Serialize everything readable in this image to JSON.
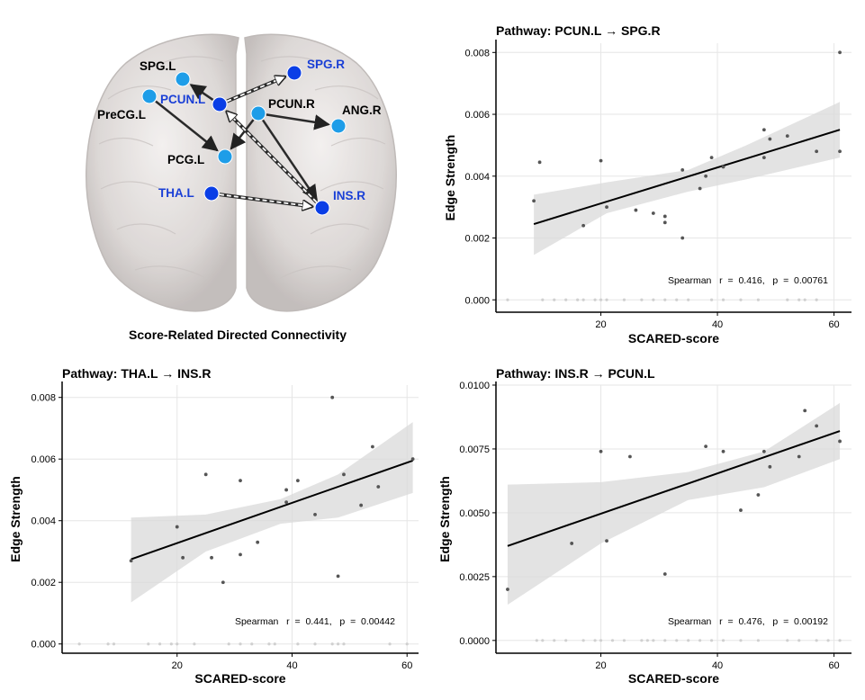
{
  "colors": {
    "node_dark": "#0a3ee6",
    "node_light": "#1e9de8",
    "label_blue": "#1a3fd6",
    "point": "#555555",
    "zero_point": "#d0d0d0",
    "band": "#d9d9d9",
    "line": "#000000",
    "grid": "#e6e6e6"
  },
  "brain": {
    "caption": "Score-Related Directed Connectivity",
    "nodes": [
      {
        "id": "SPG.L",
        "label": "SPG.L",
        "color": "light",
        "label_color": "black"
      },
      {
        "id": "PreCG.L",
        "label": "PreCG.L",
        "color": "light",
        "label_color": "black"
      },
      {
        "id": "PCUN.L",
        "label": "PCUN.L",
        "color": "dark",
        "label_color": "blue"
      },
      {
        "id": "SPG.R",
        "label": "SPG.R",
        "color": "dark",
        "label_color": "blue"
      },
      {
        "id": "PCUN.R",
        "label": "PCUN.R",
        "color": "light",
        "label_color": "black"
      },
      {
        "id": "ANG.R",
        "label": "ANG.R",
        "color": "light",
        "label_color": "black"
      },
      {
        "id": "PCG.L",
        "label": "PCG.L",
        "color": "light",
        "label_color": "black"
      },
      {
        "id": "THA.L",
        "label": "THA.L",
        "color": "dark",
        "label_color": "blue"
      },
      {
        "id": "INS.R",
        "label": "INS.R",
        "color": "dark",
        "label_color": "blue"
      }
    ],
    "edges": [
      {
        "from": "PCUN.L",
        "to": "SPG.L",
        "style": "solid"
      },
      {
        "from": "PreCG.L",
        "to": "PCG.L",
        "style": "solid"
      },
      {
        "from": "PCUN.R",
        "to": "ANG.R",
        "style": "solid"
      },
      {
        "from": "PCUN.R",
        "to": "PCG.L",
        "style": "solid"
      },
      {
        "from": "PCUN.R",
        "to": "INS.R",
        "style": "solid"
      },
      {
        "from": "PCUN.L",
        "to": "SPG.R",
        "style": "dashed"
      },
      {
        "from": "THA.L",
        "to": "INS.R",
        "style": "dashed"
      },
      {
        "from": "INS.R",
        "to": "PCUN.L",
        "style": "dashed"
      }
    ]
  },
  "chart_data": [
    {
      "type": "scatter",
      "title": "Pathway: PCUN.L → SPG.R",
      "xlabel": "SCARED-score",
      "ylabel": "Edge Strength",
      "xlim": [
        2,
        63
      ],
      "ylim": [
        -0.0004,
        0.0083
      ],
      "xticks": [
        20,
        40,
        60
      ],
      "yticks": [
        0.0,
        0.002,
        0.004,
        0.006,
        0.008
      ],
      "ytick_labels": [
        "0.000",
        "0.002",
        "0.004",
        "0.006",
        "0.008"
      ],
      "stat": "Spearman   r  =  0.416,   p  =  0.00761",
      "fit": {
        "x": [
          8.5,
          61
        ],
        "y": [
          0.00245,
          0.0055
        ]
      },
      "band": {
        "x": [
          8.5,
          21,
          35,
          45,
          61
        ],
        "upper": [
          0.0034,
          0.0038,
          0.0042,
          0.005,
          0.0064
        ],
        "lower": [
          0.00145,
          0.0028,
          0.0035,
          0.0039,
          0.0046
        ]
      },
      "points": [
        {
          "x": 8.5,
          "y": 0.0032
        },
        {
          "x": 9.5,
          "y": 0.00445
        },
        {
          "x": 17,
          "y": 0.0024
        },
        {
          "x": 20,
          "y": 0.0045
        },
        {
          "x": 21,
          "y": 0.003
        },
        {
          "x": 26,
          "y": 0.0029
        },
        {
          "x": 29,
          "y": 0.0028
        },
        {
          "x": 31,
          "y": 0.0027
        },
        {
          "x": 31,
          "y": 0.0025
        },
        {
          "x": 34,
          "y": 0.0042
        },
        {
          "x": 34,
          "y": 0.002
        },
        {
          "x": 37,
          "y": 0.0036
        },
        {
          "x": 38,
          "y": 0.004
        },
        {
          "x": 39,
          "y": 0.0046
        },
        {
          "x": 41,
          "y": 0.0043
        },
        {
          "x": 48,
          "y": 0.0055
        },
        {
          "x": 48,
          "y": 0.0046
        },
        {
          "x": 49,
          "y": 0.0052
        },
        {
          "x": 52,
          "y": 0.0053
        },
        {
          "x": 57,
          "y": 0.0048
        },
        {
          "x": 61,
          "y": 0.0048
        },
        {
          "x": 61,
          "y": 0.008
        }
      ],
      "zero_points_x": [
        4,
        10,
        12,
        14,
        16,
        17,
        19,
        20,
        21,
        24,
        27,
        29,
        31,
        33,
        35,
        39,
        41,
        44,
        47,
        52,
        54,
        55,
        57
      ]
    },
    {
      "type": "scatter",
      "title": "Pathway: THA.L → INS.R",
      "xlabel": "SCARED-score",
      "ylabel": "Edge Strength",
      "xlim": [
        0,
        62
      ],
      "ylim": [
        -0.0003,
        0.0084
      ],
      "xticks": [
        20,
        40,
        60
      ],
      "yticks": [
        0.0,
        0.002,
        0.004,
        0.006,
        0.008
      ],
      "ytick_labels": [
        "0.000",
        "0.002",
        "0.004",
        "0.006",
        "0.008"
      ],
      "stat": "Spearman   r  =  0.441,   p  =  0.00442",
      "fit": {
        "x": [
          12,
          61
        ],
        "y": [
          0.00275,
          0.00595
        ]
      },
      "band": {
        "x": [
          12,
          25,
          38,
          48,
          61
        ],
        "upper": [
          0.0041,
          0.0042,
          0.0047,
          0.0055,
          0.0072
        ],
        "lower": [
          0.00135,
          0.003,
          0.0039,
          0.0041,
          0.0049
        ]
      },
      "points": [
        {
          "x": 12,
          "y": 0.0027
        },
        {
          "x": 20,
          "y": 0.0038
        },
        {
          "x": 21,
          "y": 0.0028
        },
        {
          "x": 25,
          "y": 0.0055
        },
        {
          "x": 26,
          "y": 0.0028
        },
        {
          "x": 28,
          "y": 0.002
        },
        {
          "x": 31,
          "y": 0.0053
        },
        {
          "x": 31,
          "y": 0.0029
        },
        {
          "x": 34,
          "y": 0.0033
        },
        {
          "x": 39,
          "y": 0.005
        },
        {
          "x": 39,
          "y": 0.0046
        },
        {
          "x": 41,
          "y": 0.0053
        },
        {
          "x": 44,
          "y": 0.0042
        },
        {
          "x": 47,
          "y": 0.008
        },
        {
          "x": 48,
          "y": 0.0022
        },
        {
          "x": 49,
          "y": 0.0055
        },
        {
          "x": 52,
          "y": 0.0045
        },
        {
          "x": 54,
          "y": 0.0064
        },
        {
          "x": 55,
          "y": 0.0051
        },
        {
          "x": 61,
          "y": 0.006
        }
      ],
      "zero_points_x": [
        3,
        8,
        9,
        15,
        17,
        19,
        20,
        23,
        29,
        31,
        33,
        36,
        37,
        41,
        44,
        47,
        48,
        49,
        57,
        60
      ]
    },
    {
      "type": "scatter",
      "title": "Pathway: INS.R → PCUN.L",
      "xlabel": "SCARED-score",
      "ylabel": "Edge Strength",
      "xlim": [
        2,
        63
      ],
      "ylim": [
        -0.0005,
        0.01
      ],
      "xticks": [
        20,
        40,
        60
      ],
      "yticks": [
        0.0,
        0.0025,
        0.005,
        0.0075,
        0.01
      ],
      "ytick_labels": [
        "0.0000",
        "0.0025",
        "0.0050",
        "0.0075",
        "0.0100"
      ],
      "stat": "Spearman   r  =  0.476,   p  =  0.00192",
      "fit": {
        "x": [
          4,
          61
        ],
        "y": [
          0.0037,
          0.0082
        ]
      },
      "band": {
        "x": [
          4,
          20,
          35,
          48,
          61
        ],
        "upper": [
          0.0061,
          0.0062,
          0.0066,
          0.0074,
          0.0093
        ],
        "lower": [
          0.0014,
          0.0038,
          0.0055,
          0.006,
          0.0071
        ]
      },
      "points": [
        {
          "x": 4,
          "y": 0.002
        },
        {
          "x": 15,
          "y": 0.0038
        },
        {
          "x": 20,
          "y": 0.0074
        },
        {
          "x": 21,
          "y": 0.0039
        },
        {
          "x": 25,
          "y": 0.0072
        },
        {
          "x": 31,
          "y": 0.0026
        },
        {
          "x": 38,
          "y": 0.0076
        },
        {
          "x": 41,
          "y": 0.0074
        },
        {
          "x": 44,
          "y": 0.0051
        },
        {
          "x": 47,
          "y": 0.0057
        },
        {
          "x": 48,
          "y": 0.0074
        },
        {
          "x": 49,
          "y": 0.0068
        },
        {
          "x": 54,
          "y": 0.0072
        },
        {
          "x": 55,
          "y": 0.009
        },
        {
          "x": 57,
          "y": 0.0084
        },
        {
          "x": 61,
          "y": 0.0078
        }
      ],
      "zero_points_x": [
        9,
        10,
        12,
        14,
        17,
        19,
        20,
        22,
        24,
        27,
        28,
        29,
        31,
        33,
        35,
        37,
        39,
        41,
        44,
        47,
        52,
        54,
        57,
        59,
        61
      ]
    }
  ]
}
